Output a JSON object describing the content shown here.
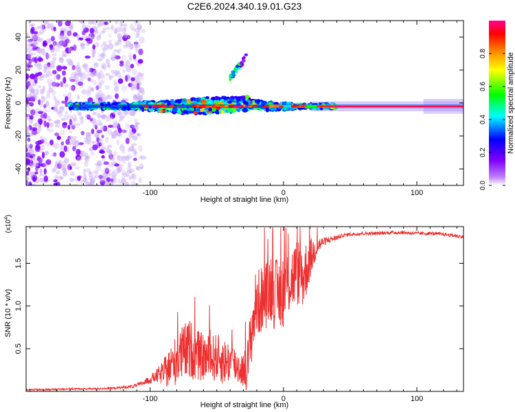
{
  "figure": {
    "title": "C2E6.2024.340.19.01.G23"
  },
  "chart_data": [
    {
      "type": "heatmap",
      "name": "spectrogram",
      "title": "C2E6.2024.340.19.01.G23",
      "xlabel": "Height of straight line (km)",
      "ylabel": "Frequency (Hz)",
      "xlim": [
        -193,
        135
      ],
      "ylim": [
        -50,
        50
      ],
      "xticks": [
        -100,
        0,
        100
      ],
      "yticks": [
        -40,
        -20,
        0,
        20,
        40
      ],
      "colorbar": {
        "label": "Normalized spectral amplitude",
        "range": [
          0,
          1
        ],
        "ticks": [
          "0.0",
          "0.2",
          "0.4",
          "0.6",
          "0.8"
        ],
        "tick_values": [
          0.0,
          0.2,
          0.4,
          0.6,
          0.8
        ],
        "colormap": [
          "#ffffff",
          "#8000ff",
          "#0000ff",
          "#00ffff",
          "#00ff00",
          "#ffff00",
          "#ff8000",
          "#ff0000",
          "#ff00a0"
        ]
      },
      "features": [
        {
          "name": "noise cloud",
          "x_range": [
            -193,
            -105
          ],
          "y_range": [
            -50,
            50
          ],
          "amplitude": 0.05
        },
        {
          "name": "carrier line",
          "x_range": [
            -160,
            135
          ],
          "y_center": -2,
          "amplitude": 0.95
        },
        {
          "name": "broadened carrier",
          "x_range": [
            -100,
            -20
          ],
          "y_range": [
            -10,
            8
          ],
          "amplitude": 0.4
        },
        {
          "name": "diagonal branch",
          "x_range": [
            -40,
            -28
          ],
          "y_range": [
            15,
            28
          ],
          "amplitude": 0.2
        }
      ]
    },
    {
      "type": "line",
      "name": "snr",
      "xlabel": "Height of straight line (km)",
      "ylabel": "SNR (10 * v/v)",
      "scale_label": "(x10",
      "scale_exponent": "4",
      "xlim": [
        -193,
        135
      ],
      "ylim": [
        0,
        1.93
      ],
      "xticks": [
        -100,
        0,
        100
      ],
      "yticks": [
        0.5,
        1.0,
        1.5
      ],
      "ytick_labels": [
        "0.5",
        "1.0",
        "1.5"
      ],
      "color": "#ee3030",
      "series": [
        {
          "name": "SNR",
          "x": [
            -193,
            -180,
            -160,
            -140,
            -125,
            -112,
            -105,
            -100,
            -95,
            -90,
            -85,
            -80,
            -75,
            -70,
            -65,
            -60,
            -55,
            -50,
            -45,
            -40,
            -35,
            -30,
            -27,
            -24,
            -21,
            -18,
            -15,
            -12,
            -9,
            -5,
            0,
            5,
            10,
            15,
            20,
            25,
            30,
            35,
            40,
            45,
            50,
            60,
            70,
            80,
            90,
            100,
            110,
            120,
            130,
            135
          ],
          "y": [
            0.02,
            0.02,
            0.03,
            0.03,
            0.04,
            0.06,
            0.1,
            0.14,
            0.18,
            0.22,
            0.28,
            0.38,
            0.45,
            0.5,
            0.42,
            0.4,
            0.38,
            0.4,
            0.35,
            0.35,
            0.3,
            0.25,
            0.3,
            0.7,
            1.0,
            1.05,
            1.1,
            1.15,
            1.25,
            1.1,
            1.2,
            1.3,
            1.4,
            1.35,
            1.55,
            1.7,
            1.75,
            1.78,
            1.8,
            1.83,
            1.84,
            1.85,
            1.85,
            1.86,
            1.86,
            1.85,
            1.85,
            1.84,
            1.82,
            1.81
          ],
          "noise": [
            0.01,
            0.01,
            0.01,
            0.01,
            0.01,
            0.02,
            0.03,
            0.05,
            0.08,
            0.15,
            0.25,
            0.3,
            0.35,
            0.35,
            0.3,
            0.28,
            0.28,
            0.28,
            0.28,
            0.25,
            0.22,
            0.2,
            0.3,
            0.4,
            0.4,
            0.4,
            0.4,
            0.4,
            0.45,
            0.45,
            0.45,
            0.4,
            0.4,
            0.4,
            0.25,
            0.12,
            0.05,
            0.04,
            0.03,
            0.02,
            0.02,
            0.02,
            0.02,
            0.02,
            0.02,
            0.02,
            0.02,
            0.02,
            0.02,
            0.02
          ]
        }
      ]
    }
  ]
}
